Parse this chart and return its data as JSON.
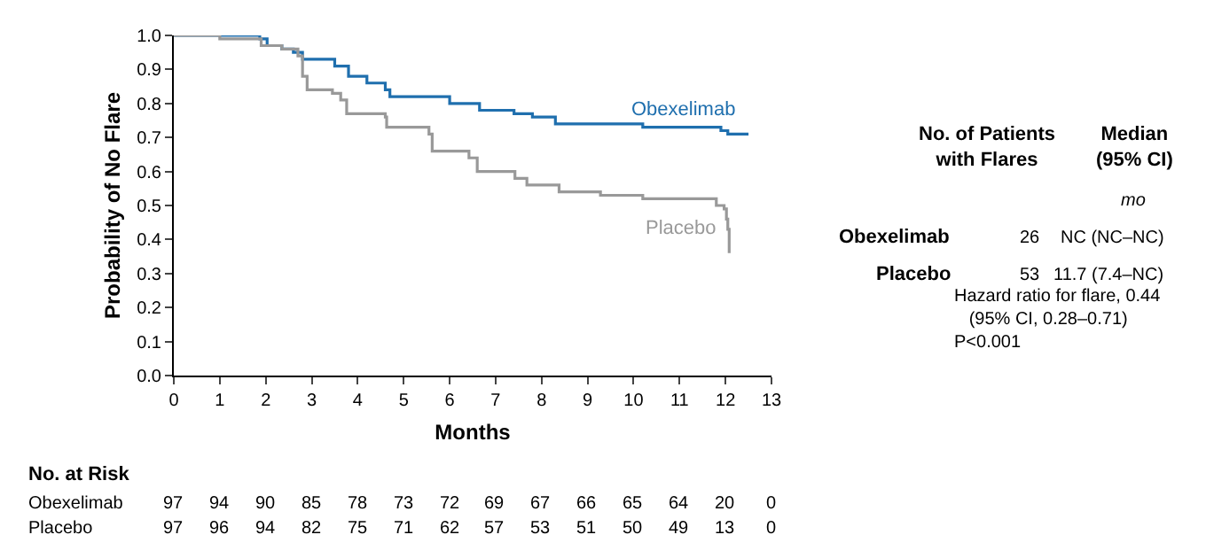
{
  "chart_data": {
    "type": "step",
    "xlabel": "Months",
    "ylabel": "Probability of No Flare",
    "xlim": [
      0,
      13
    ],
    "xticks": [
      0,
      1,
      2,
      3,
      4,
      5,
      6,
      7,
      8,
      9,
      10,
      11,
      12,
      13
    ],
    "ylim": [
      0,
      1
    ],
    "yticks": [
      {
        "value": 0,
        "label": "0.0"
      },
      {
        "value": 0.1,
        "label": "0.1"
      },
      {
        "value": 0.2,
        "label": "0.2"
      },
      {
        "value": 0.3,
        "label": "0.3"
      },
      {
        "value": 0.4,
        "label": "0.4"
      },
      {
        "value": 0.5,
        "label": "0.5"
      },
      {
        "value": 0.6,
        "label": "0.6"
      },
      {
        "value": 0.7,
        "label": "0.7"
      },
      {
        "value": 0.8,
        "label": "0.8"
      },
      {
        "value": 0.9,
        "label": "0.9"
      },
      {
        "value": 1,
        "label": "1.0"
      }
    ],
    "legend": false,
    "series": [
      {
        "name": "Obexelimab",
        "color": "#1f6fae",
        "x": [
          0,
          1.87,
          2.03,
          2.35,
          2.6,
          2.8,
          3.5,
          3.8,
          4.2,
          4.6,
          4.7,
          6.0,
          6.65,
          7.4,
          7.8,
          8.3,
          10.2,
          11.9,
          12.05,
          12.5
        ],
        "values": [
          1.0,
          0.99,
          0.97,
          0.96,
          0.95,
          0.93,
          0.91,
          0.88,
          0.86,
          0.84,
          0.82,
          0.8,
          0.78,
          0.77,
          0.76,
          0.74,
          0.73,
          0.72,
          0.71,
          0.71
        ]
      },
      {
        "name": "Placebo",
        "color": "#999999",
        "x": [
          0,
          1.0,
          1.9,
          2.35,
          2.7,
          2.8,
          2.9,
          3.45,
          3.63,
          3.76,
          4.6,
          4.63,
          5.55,
          5.62,
          6.42,
          6.6,
          7.42,
          7.68,
          8.38,
          9.28,
          10.2,
          11.8,
          11.97,
          12.02,
          12.05,
          12.08
        ],
        "values": [
          1.0,
          0.99,
          0.97,
          0.96,
          0.94,
          0.88,
          0.84,
          0.83,
          0.81,
          0.77,
          0.76,
          0.73,
          0.71,
          0.66,
          0.64,
          0.6,
          0.58,
          0.56,
          0.54,
          0.53,
          0.52,
          0.5,
          0.49,
          0.46,
          0.43,
          0.36
        ]
      }
    ],
    "annotations": [
      "No. of Patients\nwith Flares",
      "Median\n(95% CI)",
      "mo",
      "Obexelimab",
      "26",
      "NC (NC–NC)",
      "Placebo",
      "53",
      "11.7 (7.4–NC)",
      "Hazard ratio for flare, 0.44\n   (95% CI, 0.28–0.71)\nP<0.001",
      "No. at Risk",
      "Obexelimab",
      "97 94 90 85 78 73 72 69 67 66 65 64 20 0",
      "Placebo",
      "97 96 94 82 75 71 62 57 53 51 50 49 13 0"
    ]
  }
}
